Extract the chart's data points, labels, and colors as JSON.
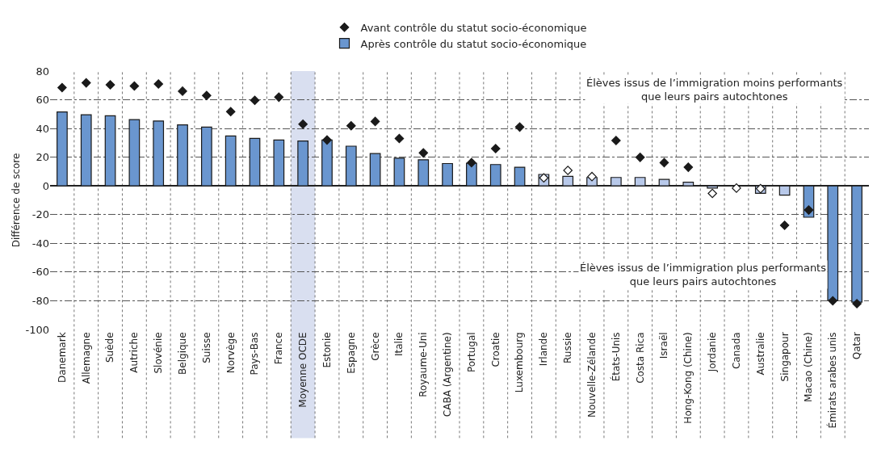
{
  "chart_data": {
    "type": "bar",
    "ylabel": "Différence de score",
    "categories": [
      "Danemark",
      "Allemagne",
      "Suède",
      "Autriche",
      "Slovénie",
      "Belgique",
      "Suisse",
      "Norvège",
      "Pays-Bas",
      "France",
      "Moyenne OCDE",
      "Estonie",
      "Espagne",
      "Grèce",
      "Italie",
      "Royaume-Uni",
      "CABA (Argentine)",
      "Portugal",
      "Croatie",
      "Luxembourg",
      "Irlande",
      "Russie",
      "Nouvelle-Zélande",
      "États-Unis",
      "Costa Rica",
      "Israël",
      "Hong-Kong (Chine)",
      "Jordanie",
      "Canada",
      "Australie",
      "Singapour",
      "Macao (Chine)",
      "Émirats arabes unis",
      "Qatar"
    ],
    "series": [
      {
        "name": "Après contrôle du statut socio-économique",
        "colors": [
          "#6a96cf",
          "#6a96cf",
          "#6a96cf",
          "#6a96cf",
          "#6a96cf",
          "#6a96cf",
          "#6a96cf",
          "#6a96cf",
          "#6a96cf",
          "#6a96cf",
          "#6a96cf",
          "#6a96cf",
          "#6a96cf",
          "#6a96cf",
          "#6a96cf",
          "#6a96cf",
          "#6a96cf",
          "#6a96cf",
          "#6a96cf",
          "#6a96cf",
          "#b8c9ea",
          "#b8c9ea",
          "#b8c9ea",
          "#b8c9ea",
          "#b8c9ea",
          "#b8c9ea",
          "#b8c9ea",
          "#b8c9ea",
          "#b8c9ea",
          "#b8c9ea",
          "#b8c9ea",
          "#6a96cf",
          "#6a96cf",
          "#6a96cf"
        ],
        "values": [
          51.5,
          49.6,
          48.8,
          46.2,
          45.2,
          42.5,
          41,
          34.8,
          33.1,
          32,
          31.3,
          32,
          27.7,
          22.5,
          19.3,
          18.2,
          15.6,
          15.8,
          14.9,
          13,
          8,
          6.7,
          5.9,
          5.9,
          5.9,
          4.5,
          2.6,
          -1.5,
          null,
          -5.2,
          -6.4,
          -21.8,
          -79.7,
          -81
        ]
      },
      {
        "name": "Avant contrôle du statut socio-économique",
        "type": "scatter",
        "marker": "diamond",
        "colors": [
          "#1a1a1a",
          "#1a1a1a",
          "#1a1a1a",
          "#1a1a1a",
          "#1a1a1a",
          "#1a1a1a",
          "#1a1a1a",
          "#1a1a1a",
          "#1a1a1a",
          "#1a1a1a",
          "#1a1a1a",
          "#1a1a1a",
          "#1a1a1a",
          "#1a1a1a",
          "#1a1a1a",
          "#1a1a1a",
          "#1a1a1a",
          "#1a1a1a",
          "#1a1a1a",
          "#1a1a1a",
          "#ffffff",
          "#ffffff",
          "#ffffff",
          "#1a1a1a",
          "#1a1a1a",
          "#1a1a1a",
          "#1a1a1a",
          "#ffffff",
          "#ffffff",
          "#ffffff",
          "#1a1a1a",
          "#1a1a1a",
          "#1a1a1a",
          "#1a1a1a"
        ],
        "values": [
          68.5,
          71.8,
          70.4,
          69.6,
          71,
          66,
          63,
          51.7,
          59.6,
          61.8,
          43,
          32,
          41.9,
          44.9,
          33,
          23,
          null,
          16.2,
          26,
          41,
          5.6,
          10.8,
          6.5,
          31.6,
          19.9,
          16.2,
          13,
          -5.2,
          -1.5,
          -1.9,
          -27.4,
          -16.8,
          -80,
          -82
        ]
      }
    ],
    "ylim": [
      -100,
      80
    ],
    "yticks": [
      -100,
      -80,
      -60,
      -40,
      -20,
      0,
      20,
      40,
      60,
      80
    ],
    "grid": true,
    "legend": "top",
    "bands": [
      {
        "axis": "x",
        "from": "Moyenne OCDE",
        "to": "Moyenne OCDE",
        "color": "#d9dff0"
      }
    ],
    "annotations": [
      "Élèves issus de l’immigration moins performants\nque leurs pairs autochtones",
      "Élèves issus de l’immigration plus performants\nque leurs pairs autochtones"
    ]
  }
}
